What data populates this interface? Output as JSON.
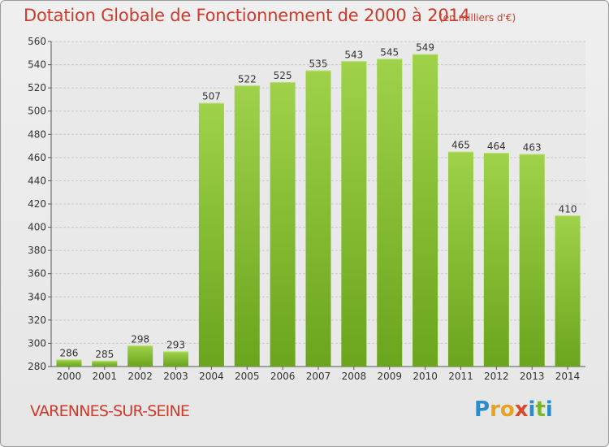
{
  "chart_data": {
    "type": "bar",
    "title": "Dotation Globale de Fonctionnement de 2000 à 2014",
    "subtitle": "(en milliers d'€)",
    "categories": [
      "2000",
      "2001",
      "2002",
      "2003",
      "2004",
      "2005",
      "2006",
      "2007",
      "2008",
      "2009",
      "2010",
      "2011",
      "2012",
      "2013",
      "2014"
    ],
    "values": [
      286,
      285,
      298,
      293,
      507,
      522,
      525,
      535,
      543,
      545,
      549,
      465,
      464,
      463,
      410
    ],
    "ylim": [
      280,
      560
    ],
    "yticks": [
      280,
      300,
      320,
      340,
      360,
      380,
      400,
      420,
      440,
      460,
      480,
      500,
      520,
      540,
      560
    ],
    "grid": true,
    "bar_color": "#7cb52a",
    "title_color": "#cc3b2c"
  },
  "footer": {
    "place": "VARENNES-SUR-SEINE",
    "brand": [
      "P",
      "r",
      "o",
      "x",
      "i",
      "t",
      "i"
    ],
    "brand_colors": [
      "#2e8bc9",
      "#e8a21f",
      "#e8a21f",
      "#d94a2b",
      "#2e8bc9",
      "#7cb52a",
      "#2e8bc9"
    ]
  }
}
